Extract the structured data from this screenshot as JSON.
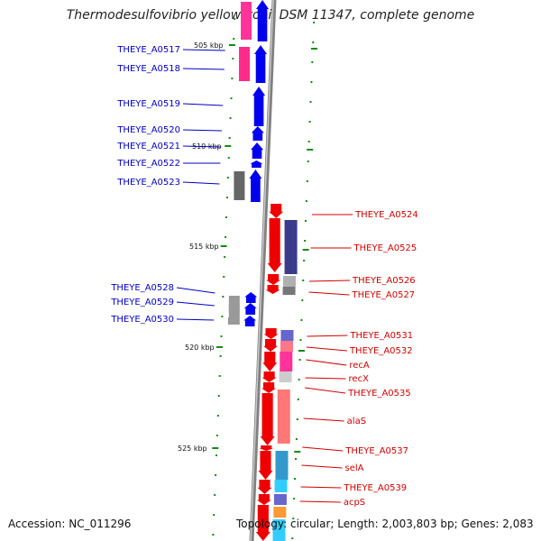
{
  "title": "Thermodesulfovibrio yellowstonii DSM 11347, complete genome",
  "accession": "Accession: NC_011296",
  "topology": "Topology: circular; Length: 2,003,803 bp; Genes: 2,083",
  "colors": {
    "left_label": "#0000c0",
    "right_label": "#d00000",
    "backbone": "#808080",
    "tick": "#138b13",
    "blue_gene": "#0000ee",
    "red_gene": "#ee0000"
  },
  "scale_labels": [
    "505 kbp",
    "510 kbp",
    "515 kbp",
    "520 kbp",
    "525 kbp"
  ],
  "left_genes": [
    "THEYE_A0517",
    "THEYE_A0518",
    "THEYE_A0519",
    "THEYE_A0520",
    "THEYE_A0521",
    "THEYE_A0522",
    "THEYE_A0523",
    "THEYE_A0528",
    "THEYE_A0529",
    "THEYE_A0530"
  ],
  "right_genes": [
    "THEYE_A0524",
    "THEYE_A0525",
    "THEYE_A0526",
    "THEYE_A0527",
    "THEYE_A0531",
    "THEYE_A0532",
    "recA",
    "recX",
    "THEYE_A0535",
    "alaS",
    "THEYE_A0537",
    "selA",
    "THEYE_A0539",
    "acpS"
  ]
}
